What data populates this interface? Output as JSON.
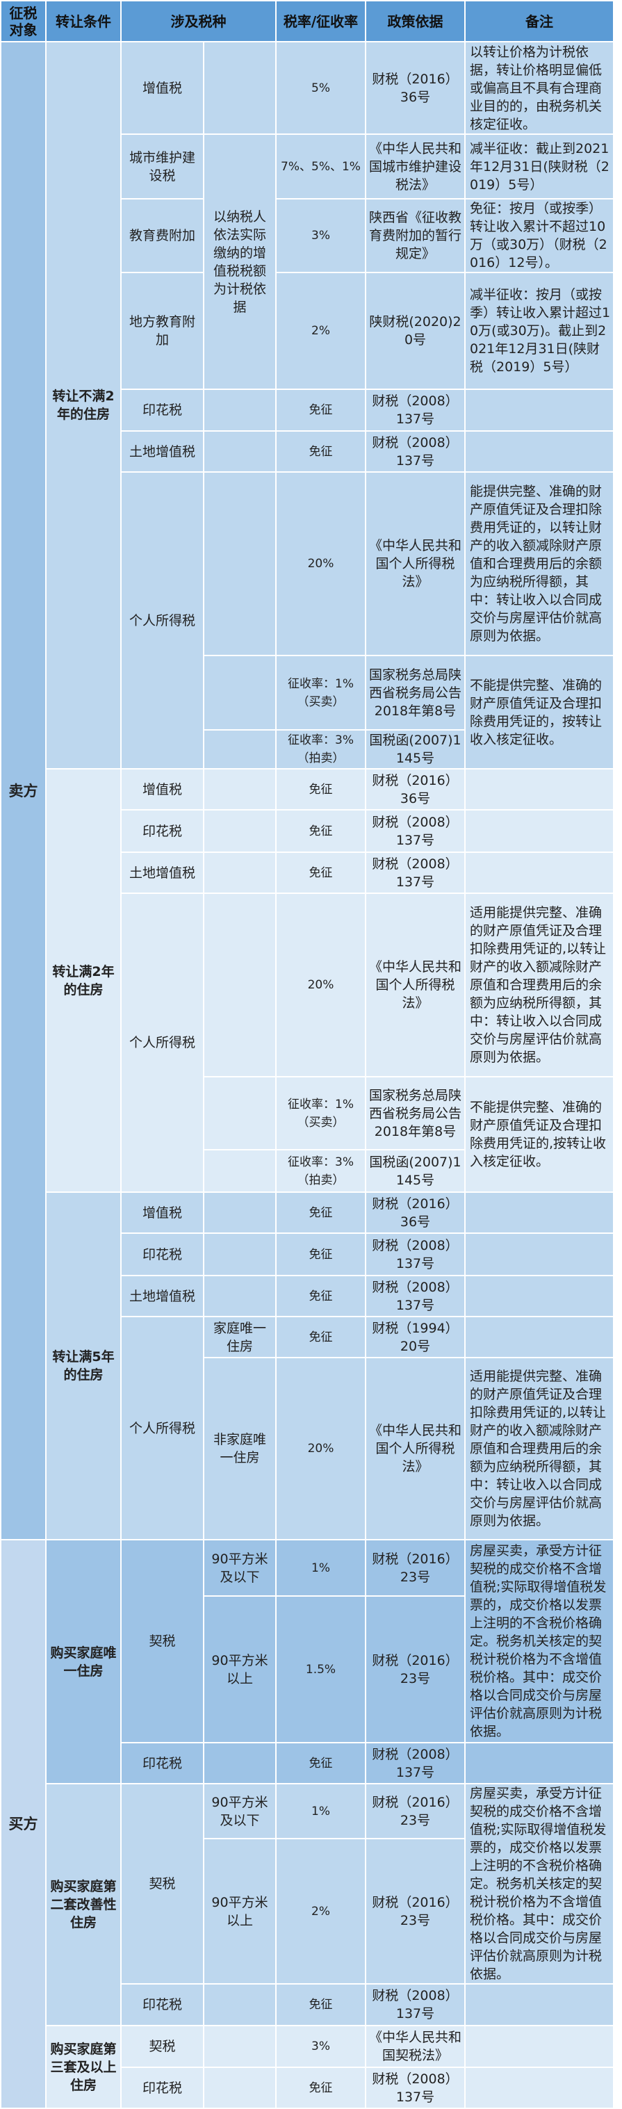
{
  "header": [
    "征税对象",
    "转让条件",
    "涉及税种",
    "税率/征收率",
    "政策依据",
    "备注"
  ],
  "seller": "卖方",
  "buyer": "买方",
  "colors": {
    "header": "#5b9bd5",
    "dark": "#9dc3e6",
    "mid": "#bdd7ee",
    "light": "#ddebf7"
  },
  "sections": [
    {
      "condition": "转让不满2年的住房",
      "basis": "以纳税人依法实际缴纳的增值税税额为计税依据",
      "rows": [
        {
          "tax": "增值税",
          "rate": "5%",
          "policy": "财税（2016）36号",
          "note": "以转让价格为计税依据，转让价格明显偏低或偏高且不具有合理商业目的的，由税务机关核定征收。"
        },
        {
          "tax": "城市维护建设税",
          "rate": "7%、5%、1%",
          "policy": "《中华人民共和国城市维护建设税法》",
          "note": "减半征收：截止到2021年12月31日(陕财税（2019）5号）"
        },
        {
          "tax": "教育费附加",
          "rate": "3%",
          "policy": "陕西省《征收教育费附加的暂行规定》",
          "note": "免征：按月（或按季）转让收入累计不超过10万（或30万）（财税（2016）12号）。"
        },
        {
          "tax": "地方教育附加",
          "rate": "2%",
          "policy": "陕财税(2020)20号",
          "note": "减半征收：按月（或按季）转让收入累计超过10万(或30万)。截止到2021年12月31日(陕财税（2019）5号）"
        },
        {
          "tax": "印花税",
          "rate": "免征",
          "policy": "财税（2008）137号"
        },
        {
          "tax": "土地增值税",
          "rate": "免征",
          "policy": "财税（2008）137号"
        },
        {
          "tax": "个人所得税",
          "rate": "20%",
          "policy": "《中华人民共和国个人所得税法》",
          "note": "能提供完整、准确的财产原值凭证及合理扣除费用凭证的，以转让财产的收入额减除财产原值和合理费用后的余额为应纳税所得额，其中：转让收入以合同成交价与房屋评估价就高原则为依据。"
        },
        {
          "rate": "征收率：1%（买卖）",
          "policy": "国家税务总局陕西省税务局公告2018年第8号",
          "note": "不能提供完整、准确的财产原值凭证及合理扣除费用凭证的，按转让收入核定征收。"
        },
        {
          "rate": "征收率：3%（拍卖）",
          "policy": "国税函(2007)1145号"
        }
      ]
    },
    {
      "condition": "转让满2年的住房",
      "rows": [
        {
          "tax": "增值税",
          "rate": "免征",
          "policy": "财税（2016）36号"
        },
        {
          "tax": "印花税",
          "rate": "免征",
          "policy": "财税（2008）137号"
        },
        {
          "tax": "土地增值税",
          "rate": "免征",
          "policy": "财税（2008）137号"
        },
        {
          "tax": "个人所得税",
          "rate": "20%",
          "policy": "《中华人民共和国个人所得税法》",
          "note": "适用能提供完整、准确的财产原值凭证及合理扣除费用凭证的,以转让财产的收入额减除财产原值和合理费用后的余额为应纳税所得额，其中：转让收入以合同成交价与房屋评估价就高原则为依据。"
        },
        {
          "rate": "征收率：1%（买卖）",
          "policy": "国家税务总局陕西省税务局公告2018年第8号",
          "note": "不能提供完整、准确的财产原值凭证及合理扣除费用凭证的,按转让收入核定征收。"
        },
        {
          "rate": "征收率：3%（拍卖）",
          "policy": "国税函(2007)1145号"
        }
      ]
    },
    {
      "condition": "转让满5年的住房",
      "rows": [
        {
          "tax": "增值税",
          "rate": "免征",
          "policy": "财税（2016）36号"
        },
        {
          "tax": "印花税",
          "rate": "免征",
          "policy": "财税（2008）137号"
        },
        {
          "tax": "土地增值税",
          "rate": "免征",
          "policy": "财税（2008）137号"
        },
        {
          "tax": "个人所得税",
          "sub": "家庭唯一住房",
          "rate": "免征",
          "policy": "财税（1994）20号"
        },
        {
          "sub": "非家庭唯一住房",
          "rate": "20%",
          "policy": "《中华人民共和国个人所得税法》",
          "note": "适用能提供完整、准确的财产原值凭证及合理扣除费用凭证的,以转让财产的收入额减除财产原值和合理费用后的余额为应纳税所得额，其中：转让收入以合同成交价与房屋评估价就高原则为依据。"
        }
      ]
    },
    {
      "condition": "购买家庭唯一住房",
      "rows": [
        {
          "tax": "契税",
          "sub": "90平方米及以下",
          "rate": "1%",
          "policy": "财税（2016）23号",
          "note": "房屋买卖，承受方计征契税的成交价格不含增值税;实际取得增值税发票的，成交价格以发票上注明的不含税价格确定。税务机关核定的契税计税价格为不含增值税价格。其中：成交价格以合同成交价与房屋评估价就高原则为计税依据。"
        },
        {
          "sub": "90平方米以上",
          "rate": "1.5%",
          "policy": "财税（2016）23号"
        },
        {
          "tax": "印花税",
          "rate": "免征",
          "policy": "财税（2008）137号"
        }
      ]
    },
    {
      "condition": "购买家庭第二套改善性住房",
      "rows": [
        {
          "tax": "契税",
          "sub": "90平方米及以下",
          "rate": "1%",
          "policy": "财税（2016）23号",
          "note": "房屋买卖，承受方计征契税的成交价格不含增值税;实际取得增值税发票的，成交价格以发票上注明的不含税价格确定。税务机关核定的契税计税价格为不含增值税价格。其中：成交价格以合同成交价与房屋评估价就高原则为计税依据。"
        },
        {
          "sub": "90平方米以上",
          "rate": "2%",
          "policy": "财税（2016）23号"
        },
        {
          "tax": "印花税",
          "rate": "免征",
          "policy": "财税（2008）137号"
        }
      ]
    },
    {
      "condition": "购买家庭第三套及以上住房",
      "rows": [
        {
          "tax": "契税",
          "rate": "3%",
          "policy": "《中华人民共和国契税法》"
        },
        {
          "tax": "印花税",
          "rate": "免征",
          "policy": "财税（2008）137号"
        }
      ]
    }
  ]
}
